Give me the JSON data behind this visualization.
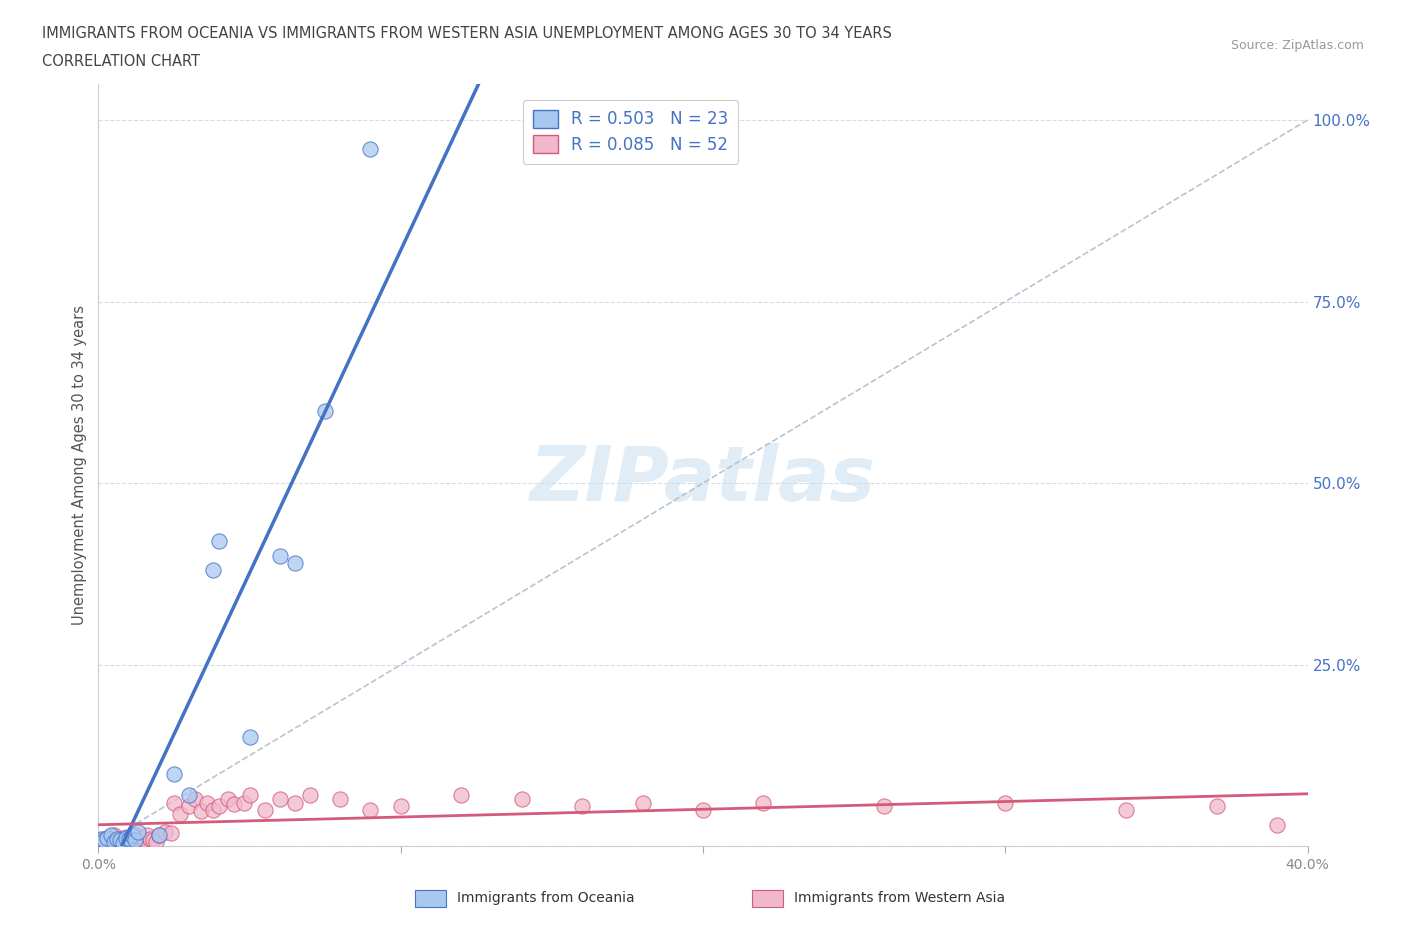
{
  "title_line1": "IMMIGRANTS FROM OCEANIA VS IMMIGRANTS FROM WESTERN ASIA UNEMPLOYMENT AMONG AGES 30 TO 34 YEARS",
  "title_line2": "CORRELATION CHART",
  "source_text": "Source: ZipAtlas.com",
  "ylabel": "Unemployment Among Ages 30 to 34 years",
  "watermark": "ZIPatlas",
  "xlim": [
    0.0,
    0.4
  ],
  "ylim": [
    0.0,
    1.05
  ],
  "color_oceania": "#a8c8f0",
  "color_western_asia": "#f0b8cc",
  "color_oceania_edge": "#4472c4",
  "color_western_asia_edge": "#d45a7a",
  "color_oceania_line": "#4472c4",
  "color_western_asia_line": "#d45a7a",
  "color_diagonal": "#b8c4d0",
  "legend_label1": "R = 0.503   N = 23",
  "legend_label2": "R = 0.085   N = 52",
  "bottom_label1": "Immigrants from Oceania",
  "bottom_label2": "Immigrants from Western Asia",
  "oceania_x": [
    0.001,
    0.002,
    0.003,
    0.004,
    0.005,
    0.006,
    0.007,
    0.008,
    0.009,
    0.01,
    0.011,
    0.012,
    0.013,
    0.02,
    0.025,
    0.03,
    0.038,
    0.04,
    0.05,
    0.06,
    0.065,
    0.075,
    0.09
  ],
  "oceania_y": [
    0.01,
    0.008,
    0.012,
    0.015,
    0.006,
    0.01,
    0.008,
    0.005,
    0.012,
    0.01,
    0.015,
    0.008,
    0.02,
    0.015,
    0.1,
    0.07,
    0.38,
    0.42,
    0.15,
    0.4,
    0.39,
    0.6,
    0.96
  ],
  "western_asia_x": [
    0.001,
    0.002,
    0.003,
    0.004,
    0.005,
    0.006,
    0.007,
    0.008,
    0.009,
    0.01,
    0.011,
    0.012,
    0.013,
    0.014,
    0.015,
    0.016,
    0.017,
    0.018,
    0.019,
    0.02,
    0.022,
    0.024,
    0.025,
    0.027,
    0.03,
    0.032,
    0.034,
    0.036,
    0.038,
    0.04,
    0.043,
    0.045,
    0.048,
    0.05,
    0.055,
    0.06,
    0.065,
    0.07,
    0.08,
    0.09,
    0.1,
    0.12,
    0.14,
    0.16,
    0.18,
    0.2,
    0.22,
    0.26,
    0.3,
    0.34,
    0.37,
    0.39
  ],
  "western_asia_y": [
    0.008,
    0.01,
    0.006,
    0.012,
    0.015,
    0.008,
    0.01,
    0.012,
    0.006,
    0.01,
    0.008,
    0.015,
    0.01,
    0.012,
    0.008,
    0.015,
    0.01,
    0.008,
    0.006,
    0.015,
    0.02,
    0.018,
    0.06,
    0.045,
    0.055,
    0.065,
    0.048,
    0.06,
    0.05,
    0.055,
    0.065,
    0.058,
    0.06,
    0.07,
    0.05,
    0.065,
    0.06,
    0.07,
    0.065,
    0.05,
    0.055,
    0.07,
    0.065,
    0.055,
    0.06,
    0.05,
    0.06,
    0.055,
    0.06,
    0.05,
    0.055,
    0.03
  ]
}
